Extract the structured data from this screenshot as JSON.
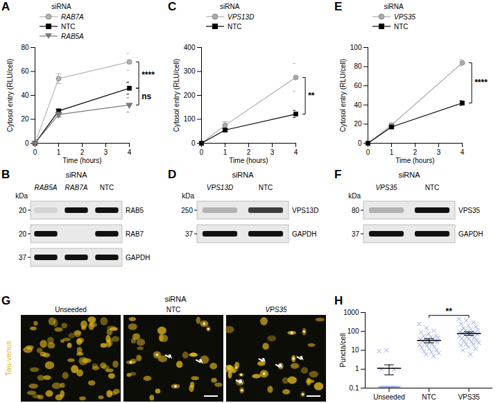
{
  "chart_data": [
    {
      "type": "line",
      "title": "A",
      "legend_title": "siRNA",
      "x_label": "Time (hours)",
      "y_label": "Cytosol entry (RLU/cell)",
      "x": [
        0,
        1,
        4
      ],
      "xlim": [
        0,
        4
      ],
      "xticks": [
        0,
        1,
        2,
        3,
        4
      ],
      "ylim": [
        0,
        80
      ],
      "yticks": [
        0,
        20,
        40,
        60,
        80
      ],
      "series": [
        {
          "name": "RAB7A",
          "color": "#b3b3b3",
          "marker": "circle",
          "values": [
            0,
            54,
            68
          ],
          "errors": [
            0,
            4,
            7
          ]
        },
        {
          "name": "NTC",
          "color": "#000000",
          "marker": "square",
          "values": [
            0,
            27,
            46
          ],
          "errors": [
            0,
            1.5,
            5
          ]
        },
        {
          "name": "RAB5A",
          "color": "#7a7a7a",
          "marker": "triangle-down",
          "values": [
            0,
            24,
            32
          ],
          "errors": [
            0,
            2,
            6
          ]
        }
      ],
      "annotations": [
        {
          "text": "****",
          "between": [
            "RAB7A",
            "NTC"
          ]
        },
        {
          "text": "ns",
          "between": [
            "NTC",
            "RAB5A"
          ]
        }
      ]
    },
    {
      "type": "blot",
      "title": "B",
      "header": "siRNA",
      "lanes": [
        "RAB5A",
        "RAB7A",
        "NTC"
      ],
      "unit": "kDa",
      "rows": [
        {
          "name": "RAB5",
          "kDa": 20,
          "bands": [
            0.1,
            1,
            1
          ]
        },
        {
          "name": "RAB7",
          "kDa": 20,
          "bands": [
            1,
            0,
            1
          ]
        },
        {
          "name": "GAPDH",
          "kDa": 37,
          "bands": [
            1,
            1,
            1
          ]
        }
      ]
    },
    {
      "type": "line",
      "title": "C",
      "legend_title": "siRNA",
      "x_label": "Time (hours)",
      "y_label": "Cytosol entry (RLU/cell)",
      "x": [
        0,
        1,
        4
      ],
      "xlim": [
        0,
        4
      ],
      "xticks": [
        0,
        1,
        2,
        3,
        4
      ],
      "ylim": [
        0,
        400
      ],
      "yticks": [
        0,
        100,
        200,
        300,
        400
      ],
      "series": [
        {
          "name": "VPS13D",
          "color": "#ababab",
          "marker": "circle",
          "values": [
            0,
            75,
            275
          ],
          "errors": [
            0,
            15,
            58
          ]
        },
        {
          "name": "NTC",
          "color": "#000000",
          "marker": "square",
          "values": [
            0,
            55,
            122
          ],
          "errors": [
            0,
            6,
            15
          ]
        }
      ],
      "annotations": [
        {
          "text": "**",
          "between": [
            "VPS13D",
            "NTC"
          ]
        }
      ]
    },
    {
      "type": "blot",
      "title": "D",
      "header": "siRNA",
      "lanes": [
        "VPS13D",
        "NTC"
      ],
      "unit": "kDa",
      "rows": [
        {
          "name": "VPS13D",
          "kDa": 250,
          "bands": [
            0.25,
            0.8
          ]
        },
        {
          "name": "GAPDH",
          "kDa": 37,
          "bands": [
            1,
            1
          ]
        }
      ]
    },
    {
      "type": "line",
      "title": "E",
      "legend_title": "siRNA",
      "x_label": "Time (hours)",
      "y_label": "Cytosol entry (RLU/cell)",
      "x": [
        0,
        1,
        4
      ],
      "xlim": [
        0,
        4
      ],
      "xticks": [
        0,
        1,
        2,
        3,
        4
      ],
      "ylim": [
        0,
        100
      ],
      "yticks": [
        0,
        20,
        40,
        60,
        80,
        100
      ],
      "series": [
        {
          "name": "VPS35",
          "color": "#ababab",
          "marker": "circle",
          "values": [
            0,
            19,
            84
          ],
          "errors": [
            0,
            1.5,
            3.5
          ]
        },
        {
          "name": "NTC",
          "color": "#000000",
          "marker": "square",
          "values": [
            0,
            17,
            42
          ],
          "errors": [
            0,
            1,
            2.5
          ]
        }
      ],
      "annotations": [
        {
          "text": "****",
          "between": [
            "VPS35",
            "NTC"
          ]
        }
      ]
    },
    {
      "type": "blot",
      "title": "F",
      "header": "siRNA",
      "lanes": [
        "VPS35",
        "NTC"
      ],
      "unit": "kDa",
      "rows": [
        {
          "name": "VPS35",
          "kDa": 80,
          "bands": [
            0.25,
            1
          ]
        },
        {
          "name": "GAPDH",
          "kDa": 37,
          "bands": [
            1,
            1
          ]
        }
      ]
    },
    {
      "type": "image",
      "title": "G",
      "header": "siRNA",
      "channel": "Tau-venus",
      "color": "#e0b820",
      "panels": [
        "Unseeded",
        "NTC",
        "VPS35"
      ]
    },
    {
      "type": "scatter",
      "title": "H",
      "categories": [
        "Unseeded",
        "NTC",
        "VPS35"
      ],
      "y_label": "Puncta/cell",
      "log": "y",
      "ylim": [
        0.1,
        1000
      ],
      "yticks": [
        0.1,
        1,
        10,
        100,
        1000
      ],
      "color": "#8fa4e6",
      "marker": "x",
      "points": [
        [
          9,
          10,
          1,
          1,
          0.1,
          0.1,
          0.1,
          0.1,
          0.1,
          0.1,
          0.1,
          0.1,
          0.1,
          0.1,
          0.1,
          0.1,
          0.1,
          0.1,
          0.1,
          0.1,
          0.1,
          0.1,
          0.1,
          0.1,
          0.1,
          0.1,
          0.1,
          0.1
        ],
        [
          250,
          150,
          110,
          90,
          75,
          60,
          55,
          50,
          45,
          42,
          40,
          38,
          35,
          32,
          30,
          28,
          27,
          25,
          22,
          20,
          18,
          15,
          14,
          12,
          10,
          9,
          8,
          7,
          6,
          5
        ],
        [
          450,
          380,
          300,
          250,
          200,
          180,
          150,
          130,
          120,
          110,
          100,
          95,
          90,
          85,
          80,
          75,
          70,
          65,
          60,
          55,
          50,
          45,
          42,
          40,
          35,
          30,
          28,
          25,
          22,
          20,
          18,
          15,
          12,
          10,
          6
        ]
      ],
      "means": [
        1.1,
        33,
        78
      ],
      "errors": [
        0.6,
        8,
        16
      ],
      "annotations": [
        {
          "text": "**",
          "between": [
            "NTC",
            "VPS35"
          ]
        }
      ]
    }
  ]
}
